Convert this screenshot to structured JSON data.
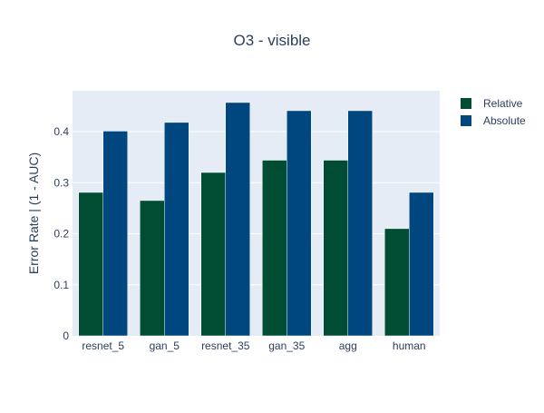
{
  "chart_data": {
    "type": "bar",
    "title": "O3 - visible",
    "xlabel": "",
    "ylabel": "Error Rate | (1 - AUC)",
    "categories": [
      "resnet_5",
      "gan_5",
      "resnet_35",
      "gan_35",
      "agg",
      "human"
    ],
    "series": [
      {
        "name": "Relative",
        "color": "#004d33",
        "values": [
          0.281,
          0.265,
          0.32,
          0.344,
          0.344,
          0.21
        ]
      },
      {
        "name": "Absolute",
        "color": "#00467f",
        "values": [
          0.401,
          0.418,
          0.457,
          0.441,
          0.441,
          0.281
        ]
      }
    ],
    "ylim": [
      0,
      0.48
    ],
    "yticks": [
      0,
      0.1,
      0.2,
      0.3,
      0.4
    ],
    "ytick_labels": [
      "0",
      "0.1",
      "0.2",
      "0.3",
      "0.4"
    ],
    "grid": true,
    "legend_position": "top-right",
    "plot_background": "#e5ecf6"
  }
}
